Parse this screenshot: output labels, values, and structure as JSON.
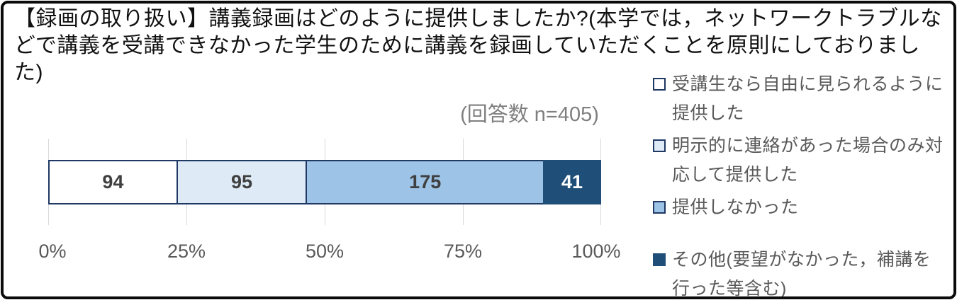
{
  "title": "【録画の取り扱い】講義録画はどのように提供しましたか?(本学では，ネットワークトラブルなどで講義を受講できなかった学生のために講義を録画していただくことを原則にしておりました)",
  "note": "(回答数 n=405)",
  "colors": {
    "bar_border": "#1f3864",
    "grid": "#d9d9d9",
    "axis_text": "#595959",
    "legend_text": "#595959",
    "note_text": "#7f7f7f",
    "frame": "#0b0b0b"
  },
  "chart_data": {
    "type": "bar",
    "subtype": "horizontal-stacked",
    "title": "【録画の取り扱い】講義録画はどのように提供しましたか?(本学では，ネットワークトラブルなどで講義を受講できなかった学生のために講義を録画していただくことを原則にしておりました)",
    "note": "(回答数 n=405)",
    "n_total": 405,
    "xlim": [
      0,
      100
    ],
    "x_ticks": [
      "0%",
      "25%",
      "50%",
      "75%",
      "100%"
    ],
    "grid": true,
    "legend_position": "right",
    "segments": [
      {
        "label": "受講生なら自由に見られるように提供した",
        "value": 94,
        "percent": 23.2,
        "fill": "#ffffff",
        "border": "#1f3864",
        "text_color": "#404040"
      },
      {
        "label": "明示的に連絡があった場合のみ対応して提供した",
        "value": 95,
        "percent": 23.5,
        "fill": "#deebf7",
        "border": "#1f3864",
        "text_color": "#404040"
      },
      {
        "label": "提供しなかった",
        "value": 175,
        "percent": 43.2,
        "fill": "#9dc3e6",
        "border": "#1f3864",
        "text_color": "#404040"
      },
      {
        "label": "その他(要望がなかった，補講を行った等含む)",
        "value": 41,
        "percent": 10.1,
        "fill": "#1f4e79",
        "border": "#1f4e79",
        "text_color": "#ffffff"
      }
    ]
  }
}
